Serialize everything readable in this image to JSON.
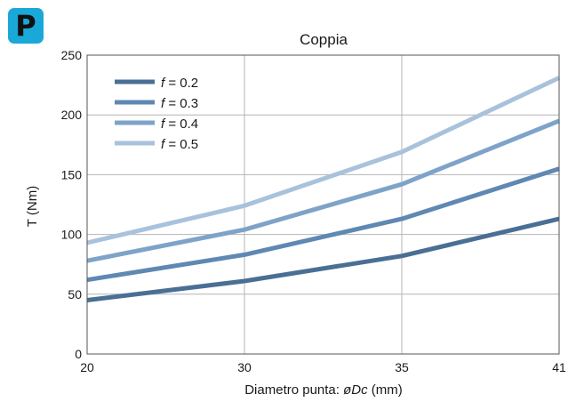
{
  "badge": {
    "letter": "P"
  },
  "chart_data": {
    "type": "line",
    "title": "Coppia",
    "xlabel_prefix": "Diametro punta: ",
    "xlabel_symbol": "øDc",
    "xlabel_suffix": " (mm)",
    "ylabel": "T (Nm)",
    "categories": [
      "20",
      "30",
      "35",
      "41"
    ],
    "ylim": [
      0,
      250
    ],
    "yticks": [
      0,
      50,
      100,
      150,
      200,
      250
    ],
    "grid": true,
    "legend_position": "top-left",
    "series": [
      {
        "name": "f = 0.2",
        "name_var": "f",
        "name_rest": " = 0.2",
        "color": "#4a6f94",
        "values": [
          45,
          61,
          82,
          113
        ]
      },
      {
        "name": "f = 0.3",
        "name_var": "f",
        "name_rest": " = 0.3",
        "color": "#5f88b3",
        "values": [
          62,
          83,
          113,
          155
        ]
      },
      {
        "name": "f = 0.4",
        "name_var": "f",
        "name_rest": " = 0.4",
        "color": "#7ea3c9",
        "values": [
          78,
          104,
          142,
          195
        ]
      },
      {
        "name": "f = 0.5",
        "name_var": "f",
        "name_rest": " = 0.5",
        "color": "#a9c2dc",
        "values": [
          93,
          124,
          169,
          231
        ]
      }
    ]
  }
}
